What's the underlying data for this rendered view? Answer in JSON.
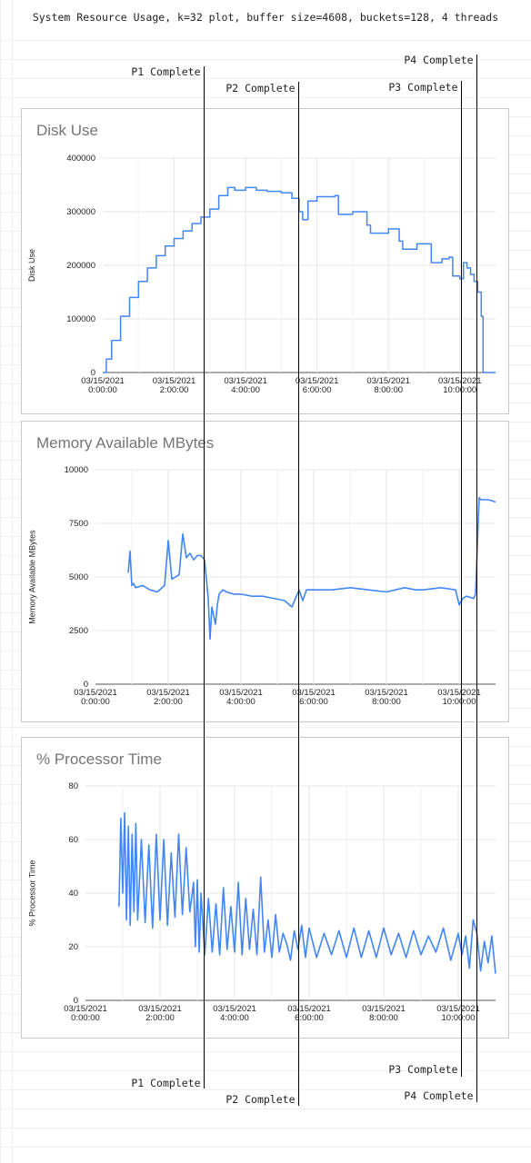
{
  "title": "System Resource Usage, k=32 plot, buffer size=4608, buckets=128, 4 threads",
  "colors": {
    "series": "#4285f4",
    "grid": "#e6e6e6",
    "marker": "#000000",
    "panel_border": "#c8c8c8"
  },
  "markers": [
    {
      "label": "P1 Complete",
      "x_hours": 2.85
    },
    {
      "label": "P2 Complete",
      "x_hours": 5.5
    },
    {
      "label": "P3 Complete",
      "x_hours": 10.05
    },
    {
      "label": "P4 Complete",
      "x_hours": 10.5
    }
  ],
  "chart_data": [
    {
      "type": "line",
      "title": "Disk Use",
      "xlabel": "",
      "ylabel": "Disk Use",
      "x_unit": "hours since 03/15/2021 0:00:00",
      "xlim": [
        0,
        11
      ],
      "ylim": [
        0,
        400000
      ],
      "yticks": [
        0,
        100000,
        200000,
        300000,
        400000
      ],
      "ytick_labels": [
        "0",
        "100000",
        "200000",
        "300000",
        "400000"
      ],
      "xtick_labels": [
        [
          "03/15/2021",
          "0:00:00"
        ],
        [
          "03/15/2021",
          "2:00:00"
        ],
        [
          "03/15/2021",
          "4:00:00"
        ],
        [
          "03/15/2021",
          "6:00:00"
        ],
        [
          "03/15/2021",
          "8:00:00"
        ],
        [
          "03/15/2021",
          "10:00:00"
        ]
      ],
      "grid": true,
      "step": true,
      "series": [
        {
          "x": [
            0,
            0.1,
            0.25,
            0.5,
            0.75,
            1.0,
            1.25,
            1.5,
            1.75,
            2.0,
            2.25,
            2.5,
            2.75,
            3.0,
            3.25,
            3.5,
            3.7,
            4.0,
            4.3,
            4.6,
            5.0,
            5.3,
            5.5,
            5.6,
            5.75,
            6.0,
            6.5,
            6.6,
            7.0,
            7.4,
            7.5,
            8.0,
            8.3,
            8.4,
            8.8,
            9.0,
            9.2,
            9.5,
            9.7,
            9.8,
            10.0,
            10.1,
            10.2,
            10.3,
            10.4,
            10.5,
            10.6,
            10.65,
            11.0
          ],
          "values": [
            0,
            25000,
            60000,
            105000,
            140000,
            170000,
            195000,
            218000,
            236000,
            250000,
            264000,
            278000,
            290000,
            305000,
            330000,
            345000,
            340000,
            345000,
            340000,
            338000,
            335000,
            325000,
            300000,
            285000,
            320000,
            328000,
            330000,
            295000,
            300000,
            275000,
            260000,
            268000,
            245000,
            230000,
            240000,
            240000,
            205000,
            212000,
            215000,
            180000,
            175000,
            205000,
            195000,
            183000,
            170000,
            150000,
            105000,
            0,
            0
          ]
        }
      ]
    },
    {
      "type": "line",
      "title": "Memory Available MBytes",
      "xlabel": "",
      "ylabel": "Memory Available MBytes",
      "x_unit": "hours since 03/15/2021 0:00:00",
      "xlim": [
        0,
        11
      ],
      "ylim": [
        0,
        10000
      ],
      "yticks": [
        0,
        2500,
        5000,
        7500,
        10000
      ],
      "ytick_labels": [
        "0",
        "2500",
        "5000",
        "7500",
        "10000"
      ],
      "xtick_labels": [
        [
          "03/15/2021",
          "0:00:00"
        ],
        [
          "03/15/2021",
          "2:00:00"
        ],
        [
          "03/15/2021",
          "4:00:00"
        ],
        [
          "03/15/2021",
          "6:00:00"
        ],
        [
          "03/15/2021",
          "8:00:00"
        ],
        [
          "03/15/2021",
          "10:00:00"
        ]
      ],
      "grid": true,
      "step": false,
      "series": [
        {
          "x": [
            0.9,
            0.95,
            1.0,
            1.05,
            1.1,
            1.3,
            1.5,
            1.7,
            1.9,
            2.0,
            2.1,
            2.2,
            2.3,
            2.4,
            2.5,
            2.6,
            2.7,
            2.8,
            2.9,
            3.0,
            3.1,
            3.15,
            3.2,
            3.25,
            3.3,
            3.35,
            3.4,
            3.5,
            3.6,
            3.8,
            4.0,
            4.3,
            4.6,
            4.9,
            5.2,
            5.4,
            5.6,
            5.7,
            5.8,
            6.0,
            6.5,
            7.0,
            7.5,
            8.0,
            8.5,
            8.8,
            9.0,
            9.5,
            9.9,
            10.0,
            10.1,
            10.2,
            10.4,
            10.45,
            10.55,
            10.6,
            10.8,
            11.0
          ],
          "values": [
            5200,
            6200,
            4600,
            4700,
            4500,
            4600,
            4400,
            4300,
            4600,
            6700,
            4900,
            5000,
            5100,
            7000,
            5900,
            6100,
            5800,
            6000,
            6000,
            5800,
            4000,
            2100,
            3600,
            3200,
            2800,
            3700,
            4200,
            4400,
            4300,
            4200,
            4200,
            4100,
            4100,
            4000,
            3900,
            3600,
            4400,
            3900,
            4400,
            4400,
            4400,
            4500,
            4400,
            4300,
            4500,
            4400,
            4400,
            4500,
            4400,
            3700,
            4000,
            4100,
            4000,
            4200,
            8700,
            8600,
            8600,
            8500
          ]
        }
      ]
    },
    {
      "type": "line",
      "title": "% Processor Time",
      "xlabel": "",
      "ylabel": "% Processor Time",
      "x_unit": "hours since 03/15/2021 0:00:00",
      "xlim": [
        0,
        11
      ],
      "ylim": [
        0,
        80
      ],
      "yticks": [
        0,
        20,
        40,
        60,
        80
      ],
      "ytick_labels": [
        "0",
        "20",
        "40",
        "60",
        "80"
      ],
      "xtick_labels": [
        [
          "03/15/2021",
          "0:00:00"
        ],
        [
          "03/15/2021",
          "2:00:00"
        ],
        [
          "03/15/2021",
          "4:00:00"
        ],
        [
          "03/15/2021",
          "6:00:00"
        ],
        [
          "03/15/2021",
          "8:00:00"
        ],
        [
          "03/15/2021",
          "10:00:00"
        ]
      ],
      "grid": true,
      "step": false,
      "series": [
        {
          "x": [
            0.9,
            0.95,
            1.0,
            1.05,
            1.1,
            1.15,
            1.2,
            1.25,
            1.3,
            1.35,
            1.4,
            1.5,
            1.6,
            1.7,
            1.8,
            1.9,
            2.0,
            2.1,
            2.2,
            2.3,
            2.4,
            2.5,
            2.6,
            2.7,
            2.8,
            2.9,
            2.95,
            3.0,
            3.05,
            3.1,
            3.2,
            3.3,
            3.4,
            3.5,
            3.6,
            3.7,
            3.8,
            3.9,
            4.0,
            4.1,
            4.2,
            4.3,
            4.4,
            4.5,
            4.6,
            4.7,
            4.8,
            4.9,
            5.0,
            5.1,
            5.2,
            5.3,
            5.4,
            5.5,
            5.6,
            5.7,
            5.8,
            5.9,
            6.0,
            6.2,
            6.4,
            6.6,
            6.8,
            7.0,
            7.2,
            7.4,
            7.6,
            7.8,
            8.0,
            8.2,
            8.4,
            8.6,
            8.8,
            9.0,
            9.2,
            9.4,
            9.6,
            9.8,
            10.0,
            10.1,
            10.2,
            10.3,
            10.4,
            10.5,
            10.6,
            10.7,
            10.8,
            10.9,
            11.0
          ],
          "values": [
            35,
            68,
            40,
            70,
            30,
            65,
            28,
            62,
            33,
            66,
            30,
            60,
            29,
            58,
            27,
            62,
            30,
            60,
            28,
            55,
            31,
            62,
            32,
            57,
            33,
            44,
            20,
            45,
            18,
            40,
            17,
            38,
            18,
            36,
            17,
            42,
            19,
            35,
            18,
            44,
            17,
            38,
            19,
            34,
            17,
            46,
            18,
            30,
            16,
            32,
            18,
            25,
            21,
            15,
            26,
            19,
            28,
            16,
            27,
            16,
            25,
            17,
            26,
            16,
            27,
            16,
            26,
            16,
            27,
            17,
            25,
            16,
            26,
            17,
            24,
            18,
            27,
            15,
            25,
            17,
            24,
            12,
            30,
            25,
            11,
            22,
            14,
            24,
            10
          ]
        }
      ]
    }
  ]
}
